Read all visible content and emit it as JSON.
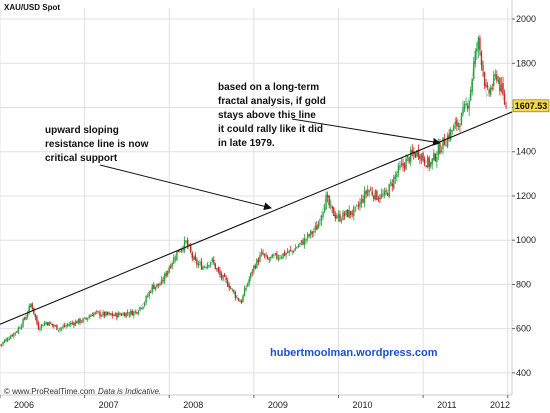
{
  "chart_data": {
    "type": "line",
    "title": "XAU/USD Spot",
    "xlabel": "",
    "ylabel": "",
    "x_ticks": [
      "2006",
      "2007",
      "2008",
      "2009",
      "2010",
      "2011",
      "2012"
    ],
    "x_range": [
      2006.0,
      2012.05
    ],
    "y_ticks": [
      400,
      600,
      800,
      1000,
      1200,
      1400,
      1600,
      1800,
      2000
    ],
    "ylim": [
      300,
      2050
    ],
    "grid": true,
    "last_price_label": "1607.53",
    "series": [
      {
        "x": [
          2006.0,
          2006.1,
          2006.2,
          2006.3,
          2006.37,
          2006.45,
          2006.55,
          2006.7,
          2006.85,
          2007.0,
          2007.1,
          2007.2,
          2007.35,
          2007.5,
          2007.6,
          2007.7,
          2007.8,
          2007.9,
          2008.0,
          2008.1,
          2008.2,
          2008.3,
          2008.4,
          2008.5,
          2008.6,
          2008.7,
          2008.8,
          2008.85,
          2008.9,
          2009.0,
          2009.1,
          2009.15,
          2009.3,
          2009.45,
          2009.6,
          2009.75,
          2009.85,
          2009.92,
          2010.0,
          2010.1,
          2010.2,
          2010.35,
          2010.45,
          2010.55,
          2010.7,
          2010.85,
          2010.95,
          2011.0,
          2011.08,
          2011.2,
          2011.35,
          2011.45,
          2011.55,
          2011.6,
          2011.65,
          2011.7,
          2011.75,
          2011.82,
          2011.87,
          2011.92,
          2011.98
        ],
        "values": [
          525,
          560,
          590,
          650,
          715,
          605,
          630,
          600,
          625,
          640,
          670,
          665,
          660,
          670,
          675,
          715,
          790,
          800,
          880,
          950,
          990,
          900,
          880,
          910,
          840,
          800,
          740,
          720,
          780,
          880,
          940,
          910,
          930,
          950,
          1000,
          1060,
          1190,
          1130,
          1100,
          1120,
          1130,
          1230,
          1200,
          1200,
          1310,
          1380,
          1400,
          1370,
          1340,
          1420,
          1500,
          1550,
          1650,
          1800,
          1900,
          1800,
          1650,
          1700,
          1750,
          1680,
          1600
        ]
      }
    ],
    "annotations": [
      "upward sloping",
      "resistance line is now",
      "critical support",
      "based on a long-term",
      "fractal analysis, if gold",
      "stays above this line",
      "it could rally like it did",
      "in late 1979."
    ],
    "trendline": {
      "start": [
        2006.0,
        620
      ],
      "end": [
        2012.05,
        1580
      ]
    }
  },
  "colors": {
    "up_candle": "#2ea043",
    "down_candle": "#d11f1f",
    "grid": "#e0e0e0",
    "trendline": "#111111",
    "credit_text": "#1a4fd6",
    "price_box_fill": "#f5d94a"
  },
  "credit": "hubertmoolman.wordpress.com",
  "footer": {
    "source": "© www.ProRealTime.com",
    "note": "Data is Indicative."
  }
}
